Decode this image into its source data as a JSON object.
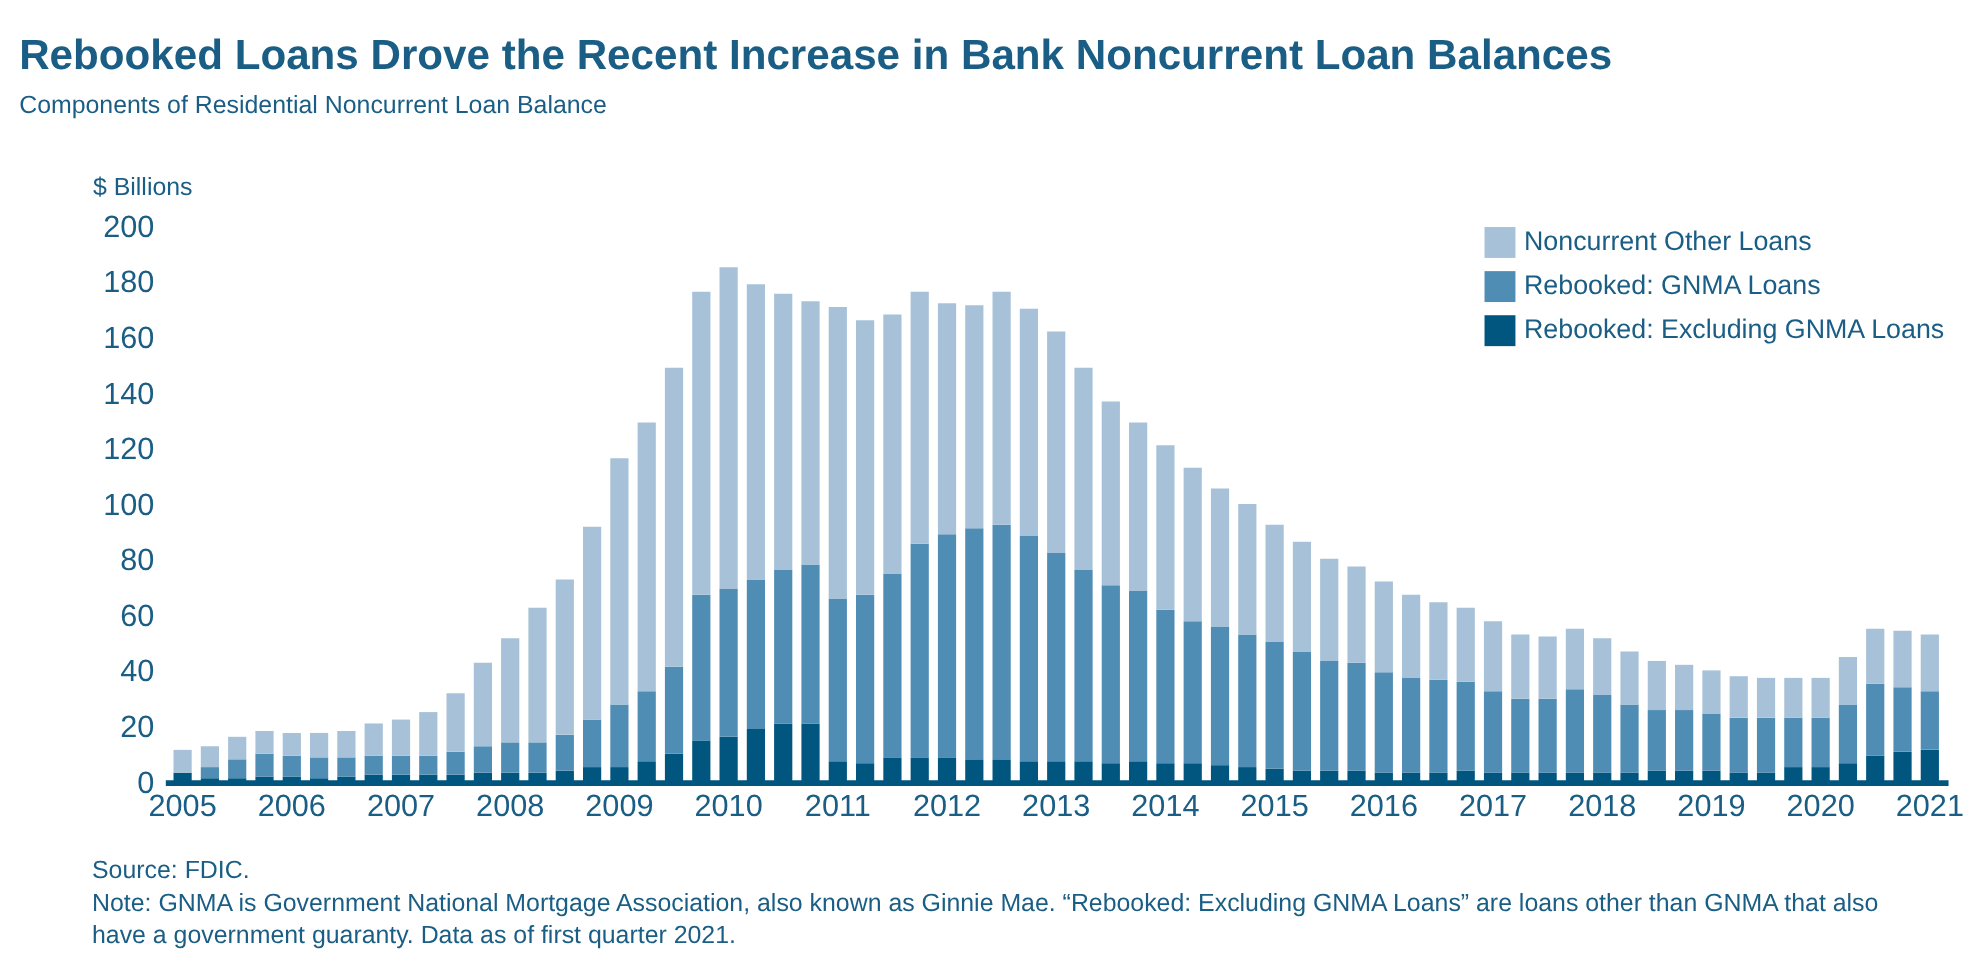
{
  "chart_data": {
    "type": "bar",
    "stacked": true,
    "title": "Rebooked Loans Drove the Recent Increase in Bank Noncurrent Loan Balances",
    "subtitle": "Components of Residential Noncurrent Loan Balance",
    "ylabel": "$ Billions",
    "categories": [
      "2005",
      null,
      null,
      null,
      "2006",
      null,
      null,
      null,
      "2007",
      null,
      null,
      null,
      "2008",
      null,
      null,
      null,
      "2009",
      null,
      null,
      null,
      "2010",
      null,
      null,
      null,
      "2011",
      null,
      null,
      null,
      "2012",
      null,
      null,
      null,
      "2013",
      null,
      null,
      null,
      "2014",
      null,
      null,
      null,
      "2015",
      null,
      null,
      null,
      "2016",
      null,
      null,
      null,
      "2017",
      null,
      null,
      null,
      "2018",
      null,
      null,
      null,
      "2019",
      null,
      null,
      null,
      "2020",
      null,
      null,
      null,
      "2021"
    ],
    "series": [
      {
        "name": "Rebooked: Excluding GNMA Loans",
        "color": "#00567f",
        "values": [
          3.4,
          1.4,
          1.4,
          2,
          2,
          1.4,
          2,
          2.7,
          2.7,
          2.7,
          2.7,
          3.4,
          3.4,
          3.4,
          4.1,
          5.4,
          5.4,
          7.5,
          10.2,
          15,
          16.3,
          19.1,
          21.1,
          21.1,
          7.5,
          6.8,
          8.9,
          8.9,
          8.9,
          8.2,
          8.2,
          7.5,
          7.5,
          7.5,
          6.8,
          7.5,
          6.8,
          6.8,
          6.1,
          5.4,
          4.8,
          4.1,
          4.1,
          4.1,
          3.4,
          3.4,
          3.4,
          4.1,
          3.4,
          3.4,
          3.4,
          3.4,
          3.4,
          3.4,
          4.1,
          4.1,
          4.1,
          3.4,
          3.4,
          5.4,
          5.4,
          6.8,
          9.5,
          10.9,
          11.6
        ]
      },
      {
        "name": "Rebooked: GNMA Loans",
        "color": "#508db5",
        "values": [
          0,
          4,
          6.8,
          8.2,
          7.5,
          7.5,
          6.9,
          6.8,
          6.8,
          6.8,
          8.2,
          9.5,
          10.9,
          10.9,
          12.9,
          17.1,
          22.5,
          25.2,
          31.3,
          52.4,
          53.2,
          53.8,
          55.2,
          57.2,
          58.6,
          60.6,
          66,
          76.9,
          80.3,
          83.1,
          84.4,
          81,
          74.9,
          68.8,
          64,
          61.3,
          55.2,
          51.1,
          49.7,
          47.7,
          45.6,
          42.9,
          39.5,
          38.8,
          36.1,
          34.1,
          33.4,
          32,
          29.3,
          26.6,
          26.6,
          30,
          27.9,
          24.5,
          21.8,
          21.8,
          20.4,
          19.8,
          19.8,
          17.8,
          17.8,
          21.1,
          25.9,
          23.2,
          21.1
        ]
      },
      {
        "name": "Noncurrent Other Loans",
        "color": "#a7c2d8",
        "values": [
          8.2,
          7.5,
          8.1,
          8.2,
          8.2,
          8.8,
          9.5,
          11.6,
          13,
          15.7,
          21.1,
          30,
          37.5,
          48.4,
          55.9,
          69.4,
          88.6,
          96.7,
          107.6,
          109,
          115.7,
          106.2,
          99.4,
          94.7,
          104.8,
          98.8,
          93.3,
          90.6,
          83.1,
          80.3,
          83.8,
          81.8,
          79.7,
          72.8,
          66.1,
          60.6,
          59.2,
          55.2,
          49.8,
          47,
          42.2,
          39.5,
          36.8,
          34.7,
          32.7,
          29.9,
          27.9,
          26.6,
          25.2,
          23.1,
          22.4,
          21.8,
          20.5,
          19.1,
          17.7,
          16.3,
          15.7,
          14.9,
          14.3,
          14.3,
          14.3,
          17.1,
          19.8,
          20.4,
          20.4
        ]
      }
    ],
    "ylim": [
      0,
      200
    ],
    "yticks": [
      0,
      20,
      40,
      60,
      80,
      100,
      120,
      140,
      160,
      180,
      200
    ],
    "grid": false,
    "legend": "top right",
    "annotations": [
      "Source: FDIC.",
      "Note: GNMA is Government National Mortgage Association, also known as Ginnie Mae. “Rebooked: Excluding GNMA Loans” are loans other than GNMA that also have a government guaranty. Data as of first quarter 2021."
    ]
  }
}
